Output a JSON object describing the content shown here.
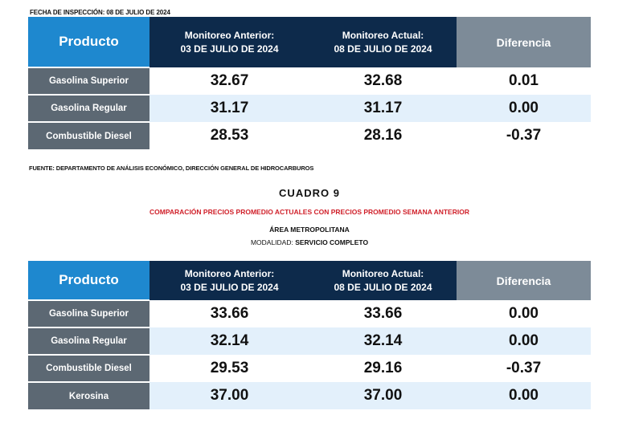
{
  "inspection_date": "FECHA DE INSPECCIÓN: 08 DE JULIO DE 2024",
  "table1": {
    "header": {
      "product": "Producto",
      "prev_line1": "Monitoreo Anterior:",
      "prev_line2": "03 DE JULIO DE 2024",
      "curr_line1": "Monitoreo Actual:",
      "curr_line2": "08 DE JULIO DE 2024",
      "diff": "Diferencia"
    },
    "rows": [
      {
        "product": "Gasolina Superior",
        "prev": "32.67",
        "curr": "32.68",
        "diff": "0.01"
      },
      {
        "product": "Gasolina Regular",
        "prev": "31.17",
        "curr": "31.17",
        "diff": "0.00"
      },
      {
        "product": "Combustible Diesel",
        "prev": "28.53",
        "curr": "28.16",
        "diff": "-0.37"
      }
    ]
  },
  "source": "FUENTE: DEPARTAMENTO DE ANÁLISIS ECONÓMICO, DIRECCIÓN GENERAL DE HIDROCARBUROS",
  "cuadro": {
    "title": "CUADRO 9",
    "subtitle": "COMPARACIÓN PRECIOS PROMEDIO ACTUALES CON PRECIOS PROMEDIO SEMANA ANTERIOR",
    "area": "ÁREA METROPOLITANA",
    "modality_label": "MODALIDAD:",
    "modality_value": "SERVICIO COMPLETO",
    "subtitle_color": "#d0202a"
  },
  "table2": {
    "header": {
      "product": "Producto",
      "prev_line1": "Monitoreo Anterior:",
      "prev_line2": "03 DE JULIO DE 2024",
      "curr_line1": "Monitoreo Actual:",
      "curr_line2": "08 DE JULIO DE 2024",
      "diff": "Diferencia"
    },
    "rows": [
      {
        "product": "Gasolina Superior",
        "prev": "33.66",
        "curr": "33.66",
        "diff": "0.00"
      },
      {
        "product": "Gasolina Regular",
        "prev": "32.14",
        "curr": "32.14",
        "diff": "0.00"
      },
      {
        "product": "Combustible Diesel",
        "prev": "29.53",
        "curr": "29.16",
        "diff": "-0.37"
      },
      {
        "product": "Kerosina",
        "prev": "37.00",
        "curr": "37.00",
        "diff": "0.00"
      }
    ]
  },
  "colors": {
    "product_header": "#1e88cf",
    "monitor_header": "#0d2a4b",
    "diff_header": "#7d8b98",
    "product_cell": "#5c6873",
    "row_alt": "#e3f0fb"
  }
}
